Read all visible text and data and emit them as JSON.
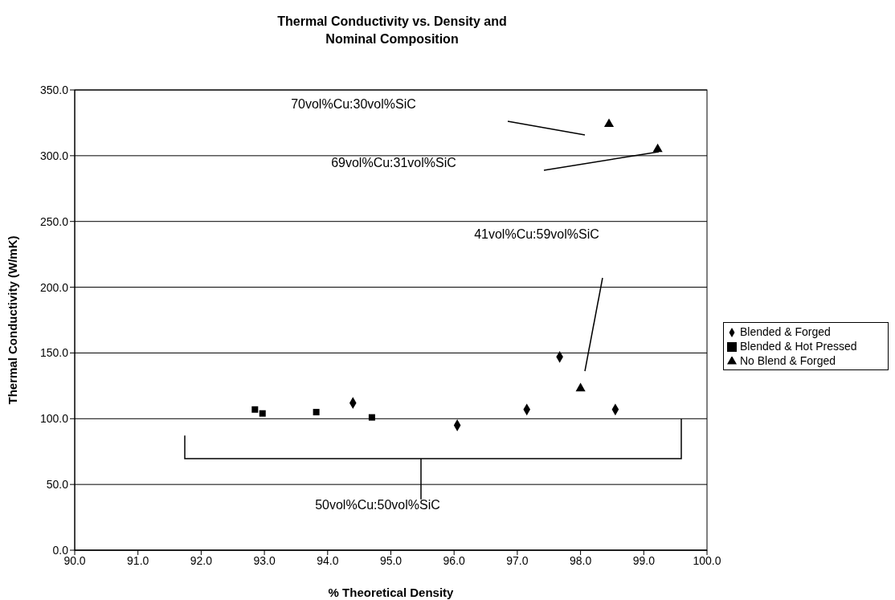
{
  "chart_data": {
    "type": "scatter",
    "title": "Thermal Conductivity vs. Density and Nominal Composition",
    "xlabel": "% Theoretical Density",
    "ylabel": "Thermal Conductivity (W/mK)",
    "xlim": [
      90,
      100
    ],
    "xticks": [
      {
        "value": 90,
        "label": "90.0"
      },
      {
        "value": 91,
        "label": "91.0"
      },
      {
        "value": 92,
        "label": "92.0"
      },
      {
        "value": 93,
        "label": "93.0"
      },
      {
        "value": 94,
        "label": "94.0"
      },
      {
        "value": 95,
        "label": "95.0"
      },
      {
        "value": 96,
        "label": "96.0"
      },
      {
        "value": 97,
        "label": "97.0"
      },
      {
        "value": 98,
        "label": "98.0"
      },
      {
        "value": 99,
        "label": "99.0"
      },
      {
        "value": 100,
        "label": "100.0"
      }
    ],
    "ylim": [
      0,
      350
    ],
    "yticks": [
      {
        "value": 0,
        "label": "0.0"
      },
      {
        "value": 50,
        "label": "50.0"
      },
      {
        "value": 100,
        "label": "100.0"
      },
      {
        "value": 150,
        "label": "150.0"
      },
      {
        "value": 200,
        "label": "200.0"
      },
      {
        "value": 250,
        "label": "250.0"
      },
      {
        "value": 300,
        "label": "300.0"
      },
      {
        "value": 350,
        "label": "350.0"
      }
    ],
    "grid": "y",
    "legend": "right",
    "series": [
      {
        "name": "Blended & Forged",
        "color": "#000000",
        "marker": "diamond",
        "x": [
          94.4,
          96.05,
          97.15,
          97.67,
          98.55
        ],
        "values": [
          112,
          95,
          107,
          147,
          107
        ]
      },
      {
        "name": "Blended & Hot Pressed",
        "color": "#000000",
        "marker": "square",
        "x": [
          92.85,
          92.97,
          93.82,
          94.7
        ],
        "values": [
          107,
          104,
          105,
          101
        ]
      },
      {
        "name": "No Blend & Forged",
        "color": "#000000",
        "marker": "triangle",
        "x": [
          98.45,
          99.22,
          98.0
        ],
        "values": [
          324,
          305,
          123
        ]
      }
    ],
    "annotations": [
      "70vol%Cu:30vol%SiC",
      "69vol%Cu:31vol%SiC",
      "41vol%Cu:59vol%SiC",
      "50vol%Cu:50vol%SiC"
    ]
  }
}
